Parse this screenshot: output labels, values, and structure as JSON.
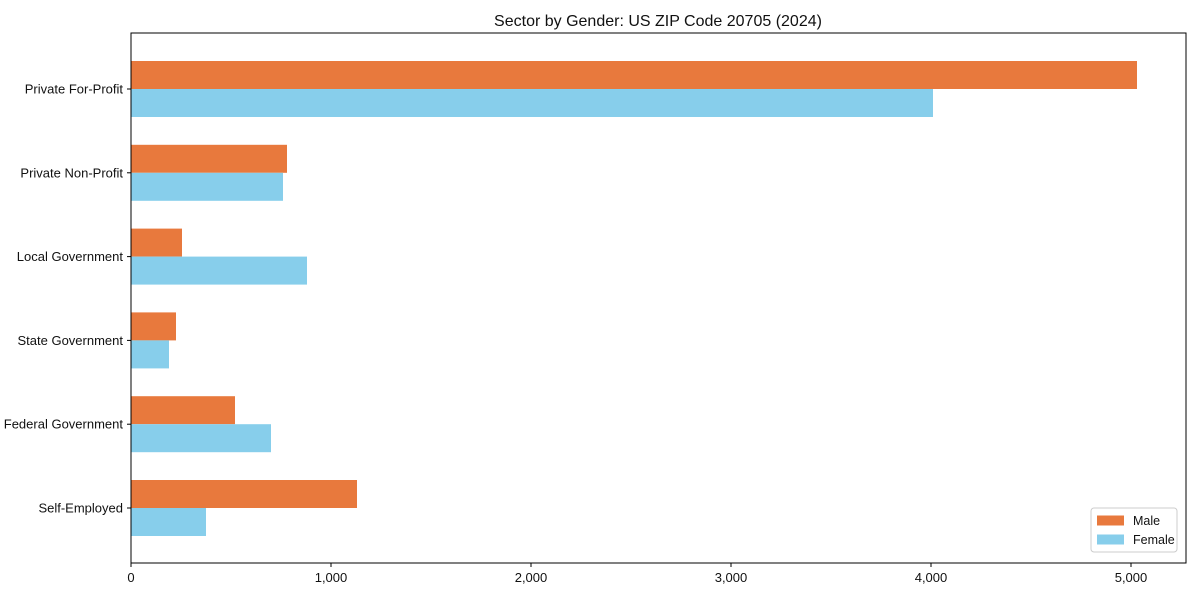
{
  "chart_data": {
    "type": "bar",
    "orientation": "horizontal",
    "title": "Sector by Gender: US ZIP Code 20705 (2024)",
    "categories": [
      "Private For-Profit",
      "Private Non-Profit",
      "Local Government",
      "State Government",
      "Federal Government",
      "Self-Employed"
    ],
    "series": [
      {
        "name": "Male",
        "color": "#E8793D",
        "values": [
          5030,
          780,
          255,
          225,
          520,
          1130
        ]
      },
      {
        "name": "Female",
        "color": "#87CEEB",
        "values": [
          4010,
          760,
          880,
          190,
          700,
          375
        ]
      }
    ],
    "xlabel": "",
    "ylabel": "",
    "xlim": [
      0,
      5275
    ],
    "x_ticks": [
      0,
      1000,
      2000,
      3000,
      4000,
      5000
    ],
    "x_tick_labels": [
      "0",
      "1,000",
      "2,000",
      "3,000",
      "4,000",
      "5,000"
    ],
    "grid": false,
    "legend_position": "lower-right",
    "frame_color": "#000000",
    "legend_border_color": "#cccccc"
  }
}
